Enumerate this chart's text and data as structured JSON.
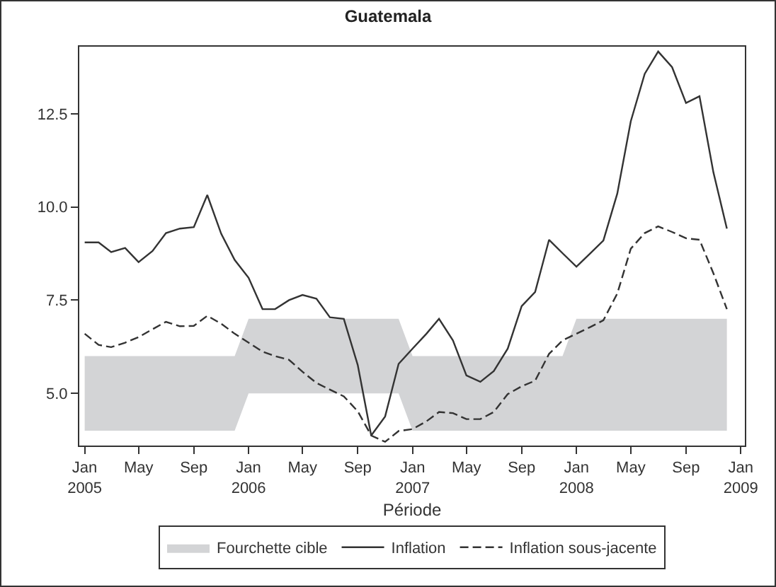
{
  "chart_data": {
    "type": "line",
    "title": "Guatemala",
    "xlabel": "Période",
    "x": [
      "2005-01",
      "2005-02",
      "2005-03",
      "2005-04",
      "2005-05",
      "2005-06",
      "2005-07",
      "2005-08",
      "2005-09",
      "2005-10",
      "2005-11",
      "2005-12",
      "2006-01",
      "2006-02",
      "2006-03",
      "2006-04",
      "2006-05",
      "2006-06",
      "2006-07",
      "2006-08",
      "2006-09",
      "2006-10",
      "2006-11",
      "2006-12",
      "2007-01",
      "2007-02",
      "2007-03",
      "2007-04",
      "2007-05",
      "2007-06",
      "2007-07",
      "2007-08",
      "2007-09",
      "2007-10",
      "2007-11",
      "2007-12",
      "2008-01",
      "2008-02",
      "2008-03",
      "2008-04",
      "2008-05",
      "2008-06",
      "2008-07",
      "2008-08",
      "2008-09",
      "2008-10",
      "2008-11",
      "2008-12"
    ],
    "series": [
      {
        "name": "Fourchette cible",
        "type": "area",
        "color": "#d3d4d6",
        "values": [
          null,
          null,
          null,
          null,
          null,
          null,
          null,
          null,
          null,
          null,
          null,
          null,
          null,
          null,
          null,
          null,
          null,
          null,
          null,
          null,
          null,
          null,
          null,
          null,
          null,
          null,
          null,
          null,
          null,
          null,
          null,
          null,
          null,
          null,
          null,
          null,
          null,
          null,
          null,
          null,
          null,
          null,
          null,
          null,
          null,
          null,
          null,
          null
        ],
        "lower": [
          4,
          4,
          4,
          4,
          4,
          4,
          4,
          4,
          4,
          4,
          4,
          4,
          5,
          5,
          5,
          5,
          5,
          5,
          5,
          5,
          5,
          5,
          5,
          5,
          4,
          4,
          4,
          4,
          4,
          4,
          4,
          4,
          4,
          4,
          4,
          4,
          4,
          4,
          4,
          4,
          4,
          4,
          4,
          4,
          4,
          4,
          4,
          4
        ],
        "upper": [
          6,
          6,
          6,
          6,
          6,
          6,
          6,
          6,
          6,
          6,
          6,
          6,
          7,
          7,
          7,
          7,
          7,
          7,
          7,
          7,
          7,
          7,
          7,
          7,
          6,
          6,
          6,
          6,
          6,
          6,
          6,
          6,
          6,
          6,
          6,
          6,
          7,
          7,
          7,
          7,
          7,
          7,
          7,
          7,
          7,
          7,
          7,
          7
        ]
      },
      {
        "name": "Inflation",
        "color": "#333333",
        "line_style": "solid",
        "values": [
          9.05,
          9.05,
          8.79,
          8.9,
          8.52,
          8.82,
          9.3,
          9.42,
          9.46,
          10.32,
          9.28,
          8.58,
          8.1,
          7.26,
          7.26,
          7.5,
          7.64,
          7.54,
          7.04,
          7.0,
          5.76,
          3.87,
          4.38,
          5.79,
          6.2,
          6.6,
          7.0,
          6.42,
          5.48,
          5.31,
          5.6,
          6.2,
          7.34,
          7.72,
          9.12,
          8.76,
          8.4,
          8.76,
          9.1,
          10.36,
          12.3,
          13.57,
          14.17,
          13.75,
          12.79,
          12.97,
          10.93,
          9.42
        ]
      },
      {
        "name": "Inflation sous-jacente",
        "color": "#333333",
        "line_style": "dashed",
        "values": [
          6.6,
          6.3,
          6.24,
          6.36,
          6.51,
          6.72,
          6.92,
          6.8,
          6.81,
          7.08,
          6.87,
          6.6,
          6.36,
          6.12,
          6.0,
          5.9,
          5.58,
          5.28,
          5.1,
          4.92,
          4.52,
          3.87,
          3.7,
          3.99,
          4.04,
          4.25,
          4.5,
          4.47,
          4.31,
          4.31,
          4.5,
          4.98,
          5.19,
          5.34,
          6.06,
          6.42,
          6.6,
          6.78,
          6.96,
          7.68,
          8.88,
          9.3,
          9.48,
          9.33,
          9.16,
          9.12,
          8.22,
          7.26
        ]
      }
    ],
    "xlim": [
      "2004-12-20",
      "2009-01-10"
    ],
    "xticks": [
      {
        "value": "2005-01",
        "label": "Jan\n2005"
      },
      {
        "value": "2005-05",
        "label": "May"
      },
      {
        "value": "2005-09",
        "label": "Sep"
      },
      {
        "value": "2006-01",
        "label": "Jan\n2006"
      },
      {
        "value": "2006-05",
        "label": "May"
      },
      {
        "value": "2006-09",
        "label": "Sep"
      },
      {
        "value": "2007-01",
        "label": "Jan\n2007"
      },
      {
        "value": "2007-05",
        "label": "May"
      },
      {
        "value": "2007-09",
        "label": "Sep"
      },
      {
        "value": "2008-01",
        "label": "Jan\n2008"
      },
      {
        "value": "2008-05",
        "label": "May"
      },
      {
        "value": "2008-09",
        "label": "Sep"
      },
      {
        "value": "2009-01",
        "label": "Jan\n2009"
      }
    ],
    "ylim": [
      3.6,
      14.3
    ],
    "yticks": [
      {
        "value": 5,
        "label": "5.0"
      },
      {
        "value": 7.5,
        "label": "7.5"
      },
      {
        "value": 10,
        "label": "10.0"
      },
      {
        "value": 12.5,
        "label": "12.5"
      }
    ],
    "grid": false,
    "legend": "bottom",
    "marker": "none"
  }
}
